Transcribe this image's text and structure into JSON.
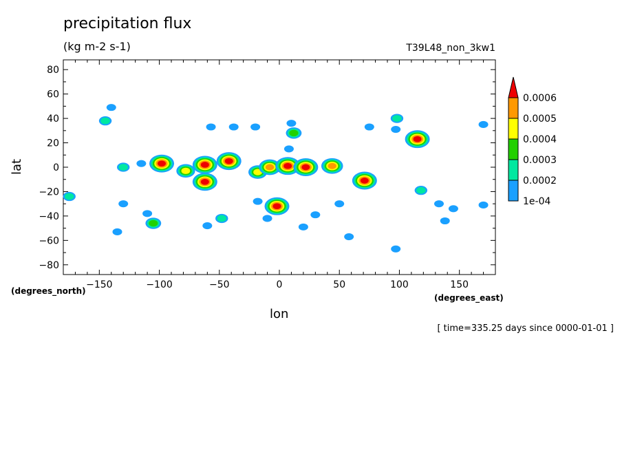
{
  "header": {
    "title": "precipitation flux",
    "units": "(kg m-2 s-1)",
    "run_id": "T39L48_non_3kw1",
    "time_info": "[ time=335.25 days since 0000-01-01 ]"
  },
  "chart_data": {
    "type": "heatmap",
    "title": "precipitation flux",
    "subtitle": "(kg m-2 s-1)",
    "xlabel": "lon",
    "ylabel": "lat",
    "x_units": "(degrees_east)",
    "y_units": "(degrees_north)",
    "xlim": [
      -180,
      180
    ],
    "ylim": [
      -88,
      88
    ],
    "xticks": [
      -150,
      -100,
      -50,
      0,
      50,
      100,
      150
    ],
    "yticks": [
      -80,
      -60,
      -40,
      -20,
      0,
      20,
      40,
      60,
      80
    ],
    "colorbar": {
      "levels": [
        "1e-04",
        "0.0002",
        "0.0003",
        "0.0004",
        "0.0005",
        "0.0006"
      ],
      "colors": [
        "#1aa0ff",
        "#00e8a0",
        "#22d000",
        "#ffff00",
        "#ff9900",
        "#ee0000"
      ],
      "extend": "max"
    },
    "cells": [
      {
        "lon": -145,
        "lat": 38,
        "level": 1
      },
      {
        "lon": -140,
        "lat": 49,
        "level": 0
      },
      {
        "lon": -130,
        "lat": 0,
        "level": 1
      },
      {
        "lon": -135,
        "lat": -53,
        "level": 0
      },
      {
        "lon": -130,
        "lat": -30,
        "level": 0
      },
      {
        "lon": -105,
        "lat": -46,
        "level": 2
      },
      {
        "lon": -110,
        "lat": -38,
        "level": 0
      },
      {
        "lon": -98,
        "lat": 3,
        "level": 5
      },
      {
        "lon": -78,
        "lat": -3,
        "level": 3
      },
      {
        "lon": -62,
        "lat": 2,
        "level": 5
      },
      {
        "lon": -62,
        "lat": -12,
        "level": 5
      },
      {
        "lon": -42,
        "lat": 5,
        "level": 5
      },
      {
        "lon": -48,
        "lat": -42,
        "level": 1
      },
      {
        "lon": -60,
        "lat": -48,
        "level": 0
      },
      {
        "lon": -38,
        "lat": 33,
        "level": 0
      },
      {
        "lon": -20,
        "lat": 33,
        "level": 0
      },
      {
        "lon": -18,
        "lat": -4,
        "level": 3
      },
      {
        "lon": -8,
        "lat": 0,
        "level": 4
      },
      {
        "lon": 7,
        "lat": 1,
        "level": 5
      },
      {
        "lon": 12,
        "lat": 28,
        "level": 2
      },
      {
        "lon": 10,
        "lat": 36,
        "level": 0
      },
      {
        "lon": 22,
        "lat": 0,
        "level": 5
      },
      {
        "lon": 44,
        "lat": 1,
        "level": 4
      },
      {
        "lon": -2,
        "lat": -32,
        "level": 5
      },
      {
        "lon": -18,
        "lat": -28,
        "level": 0
      },
      {
        "lon": -10,
        "lat": -42,
        "level": 0
      },
      {
        "lon": 30,
        "lat": -39,
        "level": 0
      },
      {
        "lon": 50,
        "lat": -30,
        "level": 0
      },
      {
        "lon": 58,
        "lat": -57,
        "level": 0
      },
      {
        "lon": 71,
        "lat": -11,
        "level": 5
      },
      {
        "lon": 75,
        "lat": 33,
        "level": 0
      },
      {
        "lon": 98,
        "lat": 40,
        "level": 1
      },
      {
        "lon": 97,
        "lat": 31,
        "level": 0
      },
      {
        "lon": 115,
        "lat": 23,
        "level": 5
      },
      {
        "lon": 118,
        "lat": -19,
        "level": 1
      },
      {
        "lon": 133,
        "lat": -30,
        "level": 0
      },
      {
        "lon": 145,
        "lat": -34,
        "level": 0
      },
      {
        "lon": 138,
        "lat": -44,
        "level": 0
      },
      {
        "lon": 170,
        "lat": -31,
        "level": 0
      },
      {
        "lon": 170,
        "lat": 35,
        "level": 0
      },
      {
        "lon": -175,
        "lat": -24,
        "level": 1
      },
      {
        "lon": -57,
        "lat": 33,
        "level": 0
      },
      {
        "lon": 97,
        "lat": -67,
        "level": 0
      },
      {
        "lon": -115,
        "lat": 3,
        "level": 0
      },
      {
        "lon": 20,
        "lat": -49,
        "level": 0
      },
      {
        "lon": 8,
        "lat": 15,
        "level": 0
      }
    ]
  }
}
